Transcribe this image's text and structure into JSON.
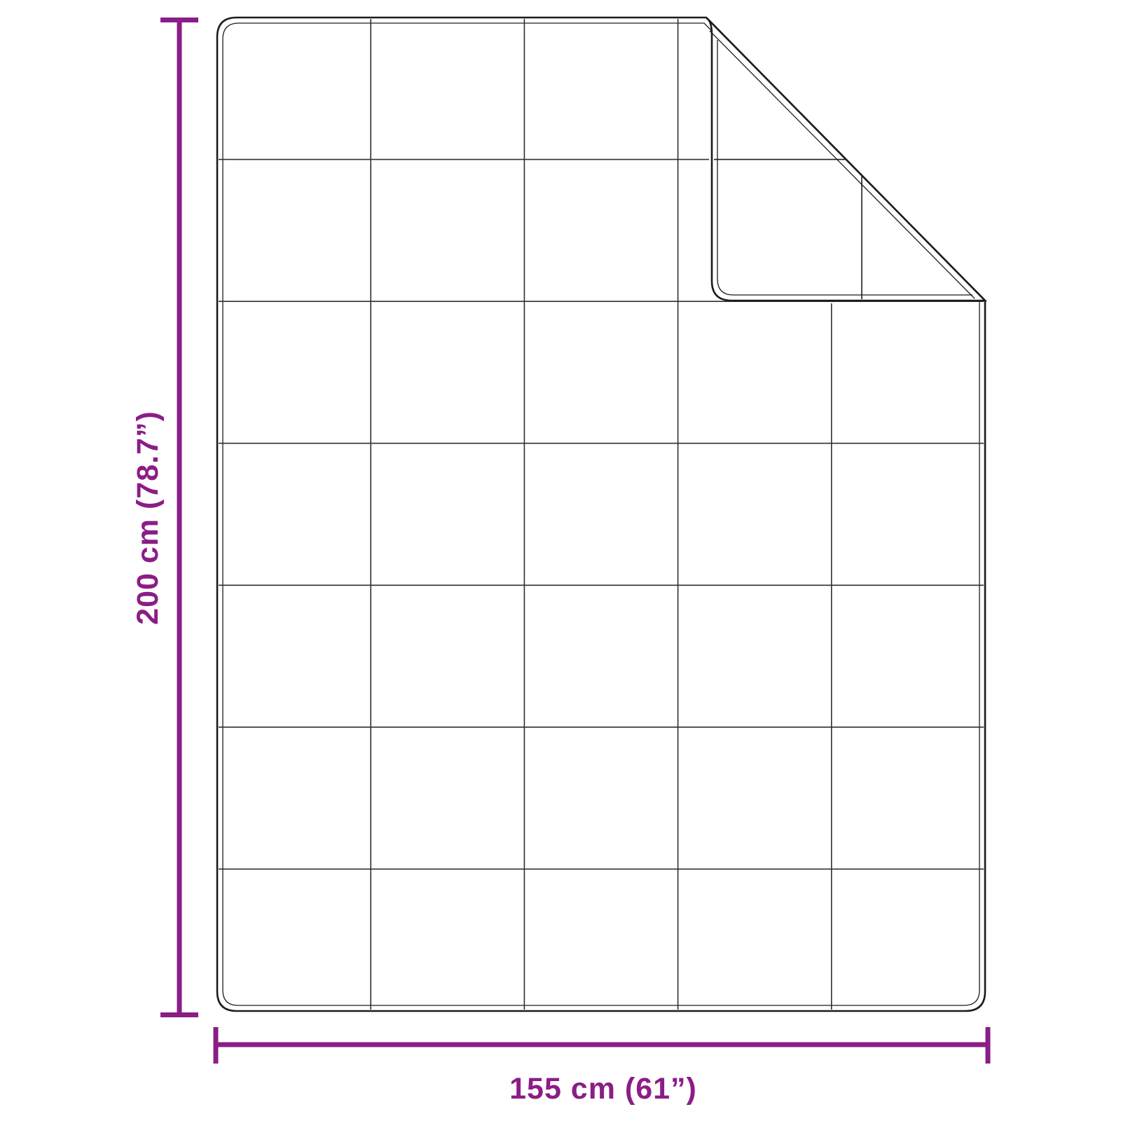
{
  "diagram": {
    "type": "product-dimension-diagram",
    "subject": "quilted blanket with folded top-right corner",
    "colors": {
      "dimension_accent": "#8b1d86",
      "outline": "#1c1c1c",
      "inner_line": "#2a2a2a",
      "grid_line": "#2f2f2f",
      "background": "#ffffff"
    },
    "height_dimension": {
      "label": "200 cm (78.7”)",
      "value_cm": 200,
      "value_inches": 78.7
    },
    "width_dimension": {
      "label": "155 cm (61”)",
      "value_cm": 155,
      "value_inches": 61
    },
    "quilt_grid": {
      "rows": 7,
      "columns": 5
    }
  }
}
